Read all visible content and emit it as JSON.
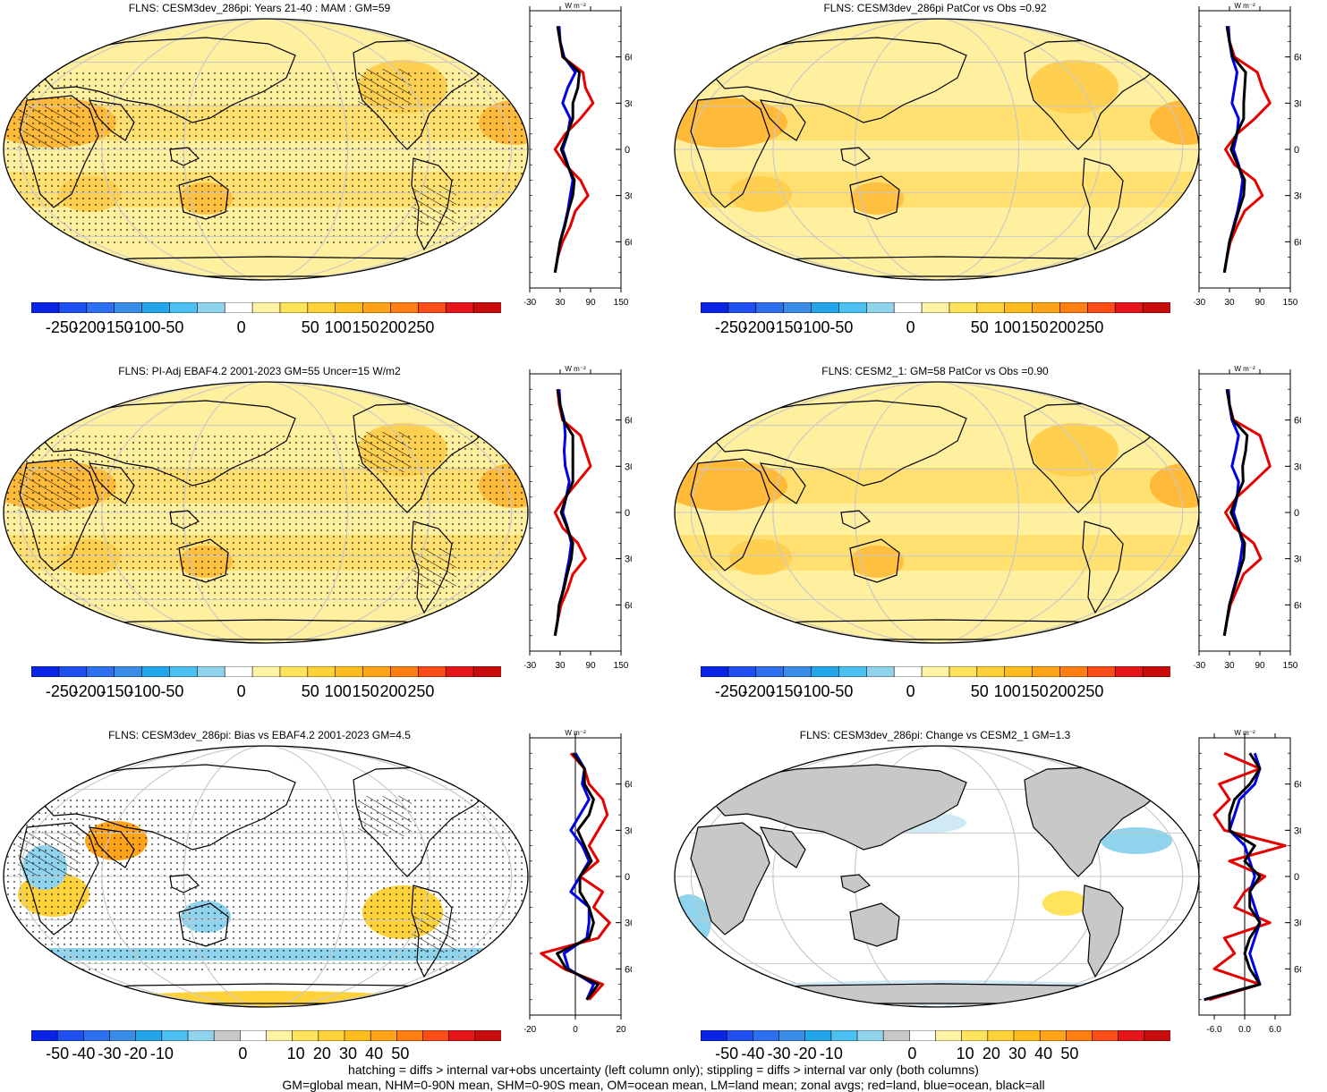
{
  "panels": [
    {
      "title": "FLNS: CESM3dev_286pi: Years 21-40 : MAM : GM=59",
      "scale": "abs",
      "mode": "abs",
      "stipple": true,
      "hatch": true,
      "colorbar_labels": [
        "-250",
        "-200",
        "-150",
        "-100",
        "-50",
        "0",
        "50",
        "100",
        "150",
        "200",
        "250"
      ],
      "zonal_xticks": [
        "-30",
        "30",
        "90",
        "150"
      ],
      "zonal_xrange": [
        -30,
        150
      ],
      "zonal_zero_line": -30
    },
    {
      "title": "FLNS: CESM3dev_286pi PatCor vs Obs =0.92",
      "scale": "abs",
      "mode": "abs",
      "stipple": false,
      "hatch": false,
      "colorbar_labels": [
        "-250",
        "-200",
        "-150",
        "-100",
        "-50",
        "0",
        "50",
        "100",
        "150",
        "200",
        "250"
      ],
      "zonal_xticks": [
        "-30",
        "30",
        "90",
        "150"
      ],
      "zonal_xrange": [
        -30,
        150
      ],
      "zonal_zero_line": -30
    },
    {
      "title": "FLNS: PI-Adj EBAF4.2 2001-2023 GM=55 Uncer=15 W/m2",
      "scale": "abs",
      "mode": "abs",
      "stipple": true,
      "hatch": true,
      "colorbar_labels": [
        "-250",
        "-200",
        "-150",
        "-100",
        "-50",
        "0",
        "50",
        "100",
        "150",
        "200",
        "250"
      ],
      "zonal_xticks": [
        "-30",
        "30",
        "90",
        "150"
      ],
      "zonal_xrange": [
        -30,
        150
      ],
      "zonal_zero_line": -30
    },
    {
      "title": "FLNS: CESM2_1: GM=58 PatCor vs Obs =0.90",
      "scale": "abs",
      "mode": "abs",
      "stipple": false,
      "hatch": false,
      "colorbar_labels": [
        "-250",
        "-200",
        "-150",
        "-100",
        "-50",
        "0",
        "50",
        "100",
        "150",
        "200",
        "250"
      ],
      "zonal_xticks": [
        "-30",
        "30",
        "90",
        "150"
      ],
      "zonal_xrange": [
        -30,
        150
      ],
      "zonal_zero_line": -30
    },
    {
      "title": "FLNS: CESM3dev_286pi: Bias vs EBAF4.2 2001-2023 GM=4.5",
      "scale": "diff",
      "mode": "bias",
      "stipple": true,
      "hatch": true,
      "colorbar_labels": [
        "-50",
        "-40",
        "-30",
        "-20",
        "-10",
        "0",
        "10",
        "20",
        "30",
        "40",
        "50"
      ],
      "zonal_xticks": [
        "-20",
        "0",
        "20"
      ],
      "zonal_xrange": [
        -20,
        20
      ],
      "zonal_zero_line": 0
    },
    {
      "title": "FLNS: CESM3dev_286pi: Change vs CESM2_1 GM=1.3",
      "scale": "diff",
      "mode": "change",
      "stipple": false,
      "hatch": false,
      "colorbar_labels": [
        "-50",
        "-40",
        "-30",
        "-20",
        "-10",
        "0",
        "10",
        "20",
        "30",
        "40",
        "50"
      ],
      "zonal_xticks": [
        "-6.0",
        "0.0",
        "6.0"
      ],
      "zonal_xrange": [
        -9,
        9
      ],
      "zonal_zero_line": 0
    }
  ],
  "zonal_units": "W m⁻²",
  "lat_labels": [
    "60N",
    "30N",
    "0",
    "30S",
    "60S"
  ],
  "colors": {
    "abs_scale": [
      "#0a24e6",
      "#1f4ff0",
      "#2e6fef",
      "#3a8de6",
      "#23a5ea",
      "#4cc0f0",
      "#8fd3ec",
      "#ffffff",
      "#fff3a5",
      "#ffe35a",
      "#ffd23a",
      "#ffbc1e",
      "#ffa419",
      "#ff7e14",
      "#fb4c18",
      "#e6151a",
      "#c80c0c"
    ],
    "diff_scale": [
      "#0a24e6",
      "#1f4ff0",
      "#2e6fef",
      "#3a8de6",
      "#23a5ea",
      "#4cc0f0",
      "#8fd3ec",
      "#c8c8c8",
      "#ffffff",
      "#fff3a5",
      "#ffe35a",
      "#ffd23a",
      "#ffbc1e",
      "#ffa419",
      "#ff7e14",
      "#fb4c18",
      "#e6151a",
      "#c80c0c"
    ],
    "land_line": "#e60000",
    "ocean_line": "#0000e6",
    "all_line": "#000000"
  },
  "chart_data": [
    {
      "type": "heatmap",
      "title": "FLNS: CESM3dev_286pi: Years 21-40 : MAM : GM=59",
      "units": "W m-2",
      "global_mean": 59,
      "zonal_mean": {
        "lat": [
          80,
          70,
          60,
          50,
          40,
          30,
          20,
          10,
          0,
          -10,
          -20,
          -30,
          -40,
          -50,
          -60,
          -70,
          -80
        ],
        "land": [
          25,
          30,
          35,
          75,
          80,
          95,
          70,
          40,
          20,
          40,
          70,
          85,
          60,
          50,
          35,
          25,
          20
        ],
        "ocean": [
          28,
          30,
          38,
          60,
          45,
          35,
          50,
          45,
          35,
          45,
          55,
          50,
          45,
          38,
          30,
          25,
          20
        ],
        "all": [
          25,
          30,
          36,
          68,
          65,
          55,
          55,
          44,
          32,
          44,
          58,
          55,
          46,
          39,
          30,
          25,
          20
        ]
      }
    },
    {
      "type": "heatmap",
      "title": "FLNS: CESM3dev_286pi PatCor vs Obs =0.92",
      "units": "W m-2",
      "pattern_correlation": 0.92,
      "zonal_mean": {
        "lat": [
          80,
          70,
          60,
          50,
          40,
          30,
          20,
          10,
          0,
          -10,
          -20,
          -30,
          -40,
          -50,
          -60,
          -70,
          -80
        ],
        "land": [
          25,
          30,
          40,
          85,
          95,
          110,
          80,
          45,
          22,
          40,
          80,
          95,
          60,
          45,
          32,
          25,
          20
        ],
        "ocean": [
          28,
          30,
          35,
          45,
          40,
          35,
          48,
          45,
          38,
          48,
          56,
          52,
          46,
          38,
          30,
          25,
          20
        ],
        "all": [
          25,
          30,
          37,
          62,
          60,
          58,
          58,
          44,
          33,
          46,
          60,
          58,
          48,
          39,
          30,
          25,
          20
        ]
      }
    },
    {
      "type": "heatmap",
      "title": "FLNS: PI-Adj EBAF4.2 2001-2023 GM=55 Uncer=15 W/m2",
      "units": "W m-2",
      "global_mean": 55,
      "uncertainty": 15,
      "zonal_mean": {
        "lat": [
          80,
          70,
          60,
          50,
          40,
          30,
          20,
          10,
          0,
          -10,
          -20,
          -30,
          -40,
          -50,
          -60,
          -70,
          -80
        ],
        "land": [
          25,
          28,
          35,
          70,
          80,
          90,
          65,
          40,
          20,
          35,
          65,
          80,
          55,
          45,
          32,
          25,
          20
        ],
        "ocean": [
          28,
          30,
          38,
          40,
          38,
          40,
          48,
          42,
          35,
          45,
          52,
          48,
          42,
          36,
          28,
          25,
          20
        ],
        "all": [
          25,
          30,
          36,
          55,
          55,
          55,
          55,
          42,
          32,
          44,
          55,
          52,
          44,
          37,
          28,
          25,
          20
        ]
      }
    },
    {
      "type": "heatmap",
      "title": "FLNS: CESM2_1: GM=58 PatCor vs Obs =0.90",
      "units": "W m-2",
      "pattern_correlation": 0.9,
      "zonal_mean": {
        "lat": [
          80,
          70,
          60,
          50,
          40,
          30,
          20,
          10,
          0,
          -10,
          -20,
          -30,
          -40,
          -50,
          -60,
          -70,
          -80
        ],
        "land": [
          25,
          30,
          38,
          90,
          100,
          110,
          78,
          45,
          22,
          40,
          78,
          92,
          58,
          45,
          32,
          25,
          20
        ],
        "ocean": [
          28,
          30,
          35,
          48,
          42,
          35,
          48,
          45,
          38,
          48,
          56,
          52,
          46,
          38,
          30,
          25,
          20
        ],
        "all": [
          25,
          30,
          37,
          65,
          62,
          56,
          57,
          44,
          33,
          46,
          60,
          58,
          48,
          39,
          30,
          25,
          20
        ]
      }
    },
    {
      "type": "heatmap",
      "title": "FLNS: CESM3dev_286pi: Bias vs EBAF4.2 2001-2023 GM=4.5",
      "units": "W m-2",
      "global_mean": 4.5,
      "zonal_mean": {
        "lat": [
          80,
          70,
          60,
          50,
          40,
          30,
          20,
          10,
          0,
          -10,
          -20,
          -30,
          -40,
          -50,
          -60,
          -70,
          -80
        ],
        "land": [
          -2,
          4,
          6,
          12,
          14,
          10,
          6,
          10,
          2,
          12,
          8,
          15,
          10,
          -15,
          -5,
          12,
          6
        ],
        "ocean": [
          0,
          4,
          3,
          6,
          2,
          -2,
          3,
          6,
          2,
          -2,
          6,
          6,
          5,
          -5,
          -3,
          8,
          5
        ],
        "all": [
          -1,
          4,
          4,
          8,
          6,
          1,
          4,
          7,
          2,
          2,
          6,
          8,
          6,
          -8,
          -4,
          10,
          5
        ]
      }
    },
    {
      "type": "heatmap",
      "title": "FLNS: CESM3dev_286pi: Change vs CESM2_1 GM=1.3",
      "units": "W m-2",
      "global_mean": 1.3,
      "zonal_mean": {
        "lat": [
          80,
          70,
          60,
          50,
          40,
          30,
          20,
          10,
          0,
          -10,
          -20,
          -30,
          -40,
          -50,
          -60,
          -70,
          -80
        ],
        "land": [
          -4,
          3,
          -5,
          -3,
          -6,
          -4,
          8,
          -3,
          4,
          0,
          -2,
          5,
          -4,
          -2,
          -6,
          3,
          -7
        ],
        "ocean": [
          2,
          3,
          2,
          -1,
          -2,
          -3,
          0,
          1,
          2,
          1,
          2,
          3,
          2,
          1,
          2,
          3,
          -8
        ],
        "all": [
          1,
          3,
          1,
          -2,
          -3,
          -3,
          2,
          0,
          3,
          1,
          1,
          3,
          1,
          0,
          1,
          3,
          -8
        ]
      }
    }
  ],
  "footer": {
    "line1": "hatching = diffs > internal var+obs uncertainty (left column only); stippling = diffs > internal var only (both columns)",
    "line2": "GM=global mean, NHM=0-90N mean, SHM=0-90S mean, OM=ocean mean, LM=land mean; zonal avgs; red=land, blue=ocean, black=all"
  }
}
